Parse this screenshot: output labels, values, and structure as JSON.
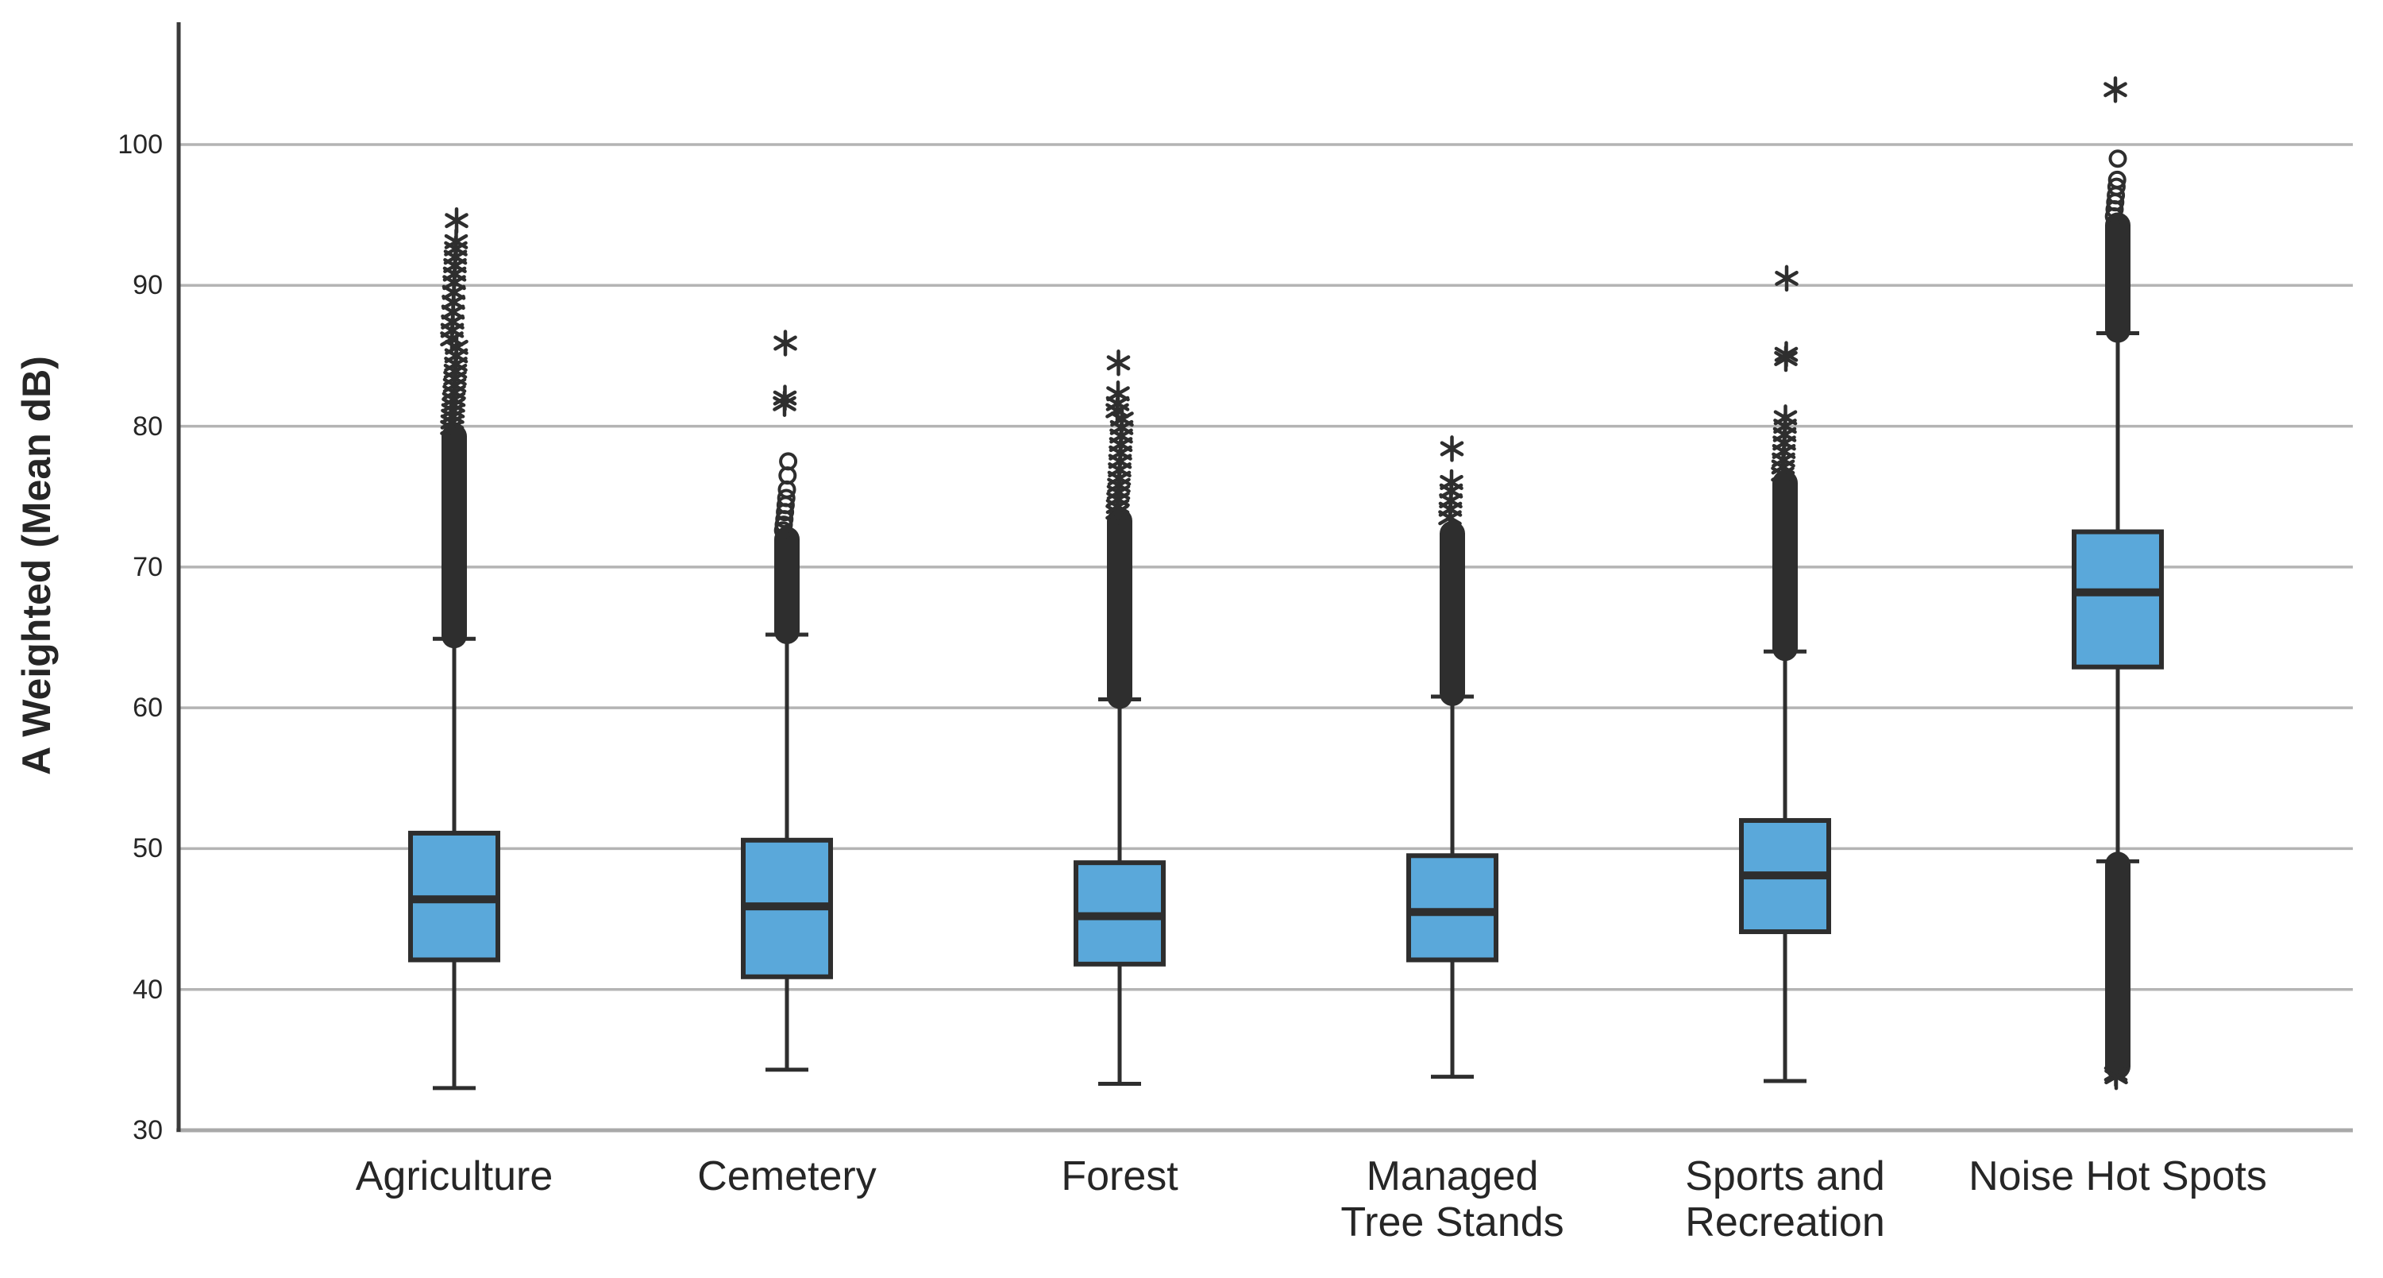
{
  "chart_data": {
    "type": "boxplot",
    "title": "",
    "xlabel": "",
    "ylabel": "A Weighted (Mean dB)",
    "ylim": [
      30,
      108
    ],
    "yticks": [
      30,
      40,
      50,
      60,
      70,
      80,
      90,
      100
    ],
    "ytick_labels": [
      "30",
      "40",
      "50",
      "60",
      "70",
      "80",
      "90",
      "100"
    ],
    "grid": "horizontal gridlines every 10 dB",
    "legend": "none",
    "categories": [
      {
        "label": "Agriculture",
        "line1": "Agriculture",
        "line2": ""
      },
      {
        "label": "Cemetery",
        "line1": "Cemetery",
        "line2": ""
      },
      {
        "label": "Forest",
        "line1": "Forest",
        "line2": ""
      },
      {
        "label": "Managed Tree Stands",
        "line1": "Managed",
        "line2": "Tree Stands"
      },
      {
        "label": "Sports and Recreation",
        "line1": "Sports and",
        "line2": "Recreation"
      },
      {
        "label": "Noise Hot Spots",
        "line1": "Noise Hot Spots",
        "line2": ""
      }
    ],
    "series": [
      {
        "category": "Agriculture",
        "whisker_low": 33.0,
        "q1": 42.1,
        "median": 46.4,
        "q3": 51.1,
        "whisker_high": 64.9,
        "outlier_dense_ranges": [
          [
            64.9,
            79.5
          ]
        ],
        "outlier_circles": [],
        "outlier_stars": [
          79.9,
          80.3,
          80.7,
          81.1,
          81.5,
          81.9,
          82.4,
          82.9,
          83.4,
          83.9,
          84.4,
          85.0,
          85.6,
          86.2,
          86.8,
          87.4,
          88.1,
          88.8,
          89.5,
          90.2,
          90.8,
          91.4,
          92.0,
          92.6,
          93.1,
          94.6
        ]
      },
      {
        "category": "Cemetery",
        "whisker_low": 34.3,
        "q1": 40.9,
        "median": 45.9,
        "q3": 50.6,
        "whisker_high": 65.2,
        "outlier_dense_ranges": [
          [
            65.2,
            72.2
          ]
        ],
        "outlier_circles": [
          72.6,
          73.0,
          73.4,
          73.9,
          74.4,
          74.9,
          75.5,
          76.5,
          77.5
        ],
        "outlier_stars": [
          81.6,
          82.0,
          85.9
        ]
      },
      {
        "category": "Forest",
        "whisker_low": 33.3,
        "q1": 41.8,
        "median": 45.2,
        "q3": 49.0,
        "whisker_high": 60.6,
        "outlier_dense_ranges": [
          [
            60.6,
            73.5
          ]
        ],
        "outlier_circles": [],
        "outlier_stars": [
          73.9,
          74.3,
          74.8,
          75.3,
          75.8,
          76.3,
          76.9,
          77.5,
          78.1,
          78.7,
          79.3,
          79.9,
          80.5,
          81.1,
          81.6,
          82.3,
          84.5
        ]
      },
      {
        "category": "Managed Tree Stands",
        "whisker_low": 33.8,
        "q1": 42.1,
        "median": 45.5,
        "q3": 49.5,
        "whisker_high": 60.8,
        "outlier_dense_ranges": [
          [
            60.8,
            72.6
          ]
        ],
        "outlier_circles": [],
        "outlier_stars": [
          73.5,
          74.1,
          74.7,
          75.4,
          76.0,
          78.4
        ]
      },
      {
        "category": "Sports and Recreation",
        "whisker_low": 33.5,
        "q1": 44.1,
        "median": 48.1,
        "q3": 52.0,
        "whisker_high": 64.0,
        "outlier_dense_ranges": [
          [
            64.0,
            76.2
          ]
        ],
        "outlier_circles": [],
        "outlier_stars": [
          76.6,
          77.1,
          77.6,
          78.2,
          78.8,
          79.4,
          80.0,
          80.6,
          84.8,
          85.1,
          90.5
        ]
      },
      {
        "category": "Noise Hot Spots",
        "whisker_low": 49.1,
        "q1": 62.9,
        "median": 68.2,
        "q3": 72.5,
        "whisker_high": 86.6,
        "outlier_dense_ranges": [
          [
            86.6,
            94.5
          ],
          [
            34.3,
            49.1
          ]
        ],
        "outlier_circles": [
          94.9,
          95.4,
          95.9,
          96.4,
          97.0,
          97.5,
          99.0
        ],
        "outlier_stars": [
          103.9,
          34.0,
          33.8
        ]
      }
    ],
    "colors": {
      "box_fill": "#5aa8da",
      "box_stroke": "#2e2e2e",
      "median": "#2e2e2e",
      "whisker": "#2e2e2e",
      "outlier": "#2e2e2e",
      "gridline": "#b4b4b4",
      "axis_line": "#3a3a3a",
      "baseline": "#a9a9a9",
      "text": "#262626",
      "background": "#ffffff"
    }
  }
}
